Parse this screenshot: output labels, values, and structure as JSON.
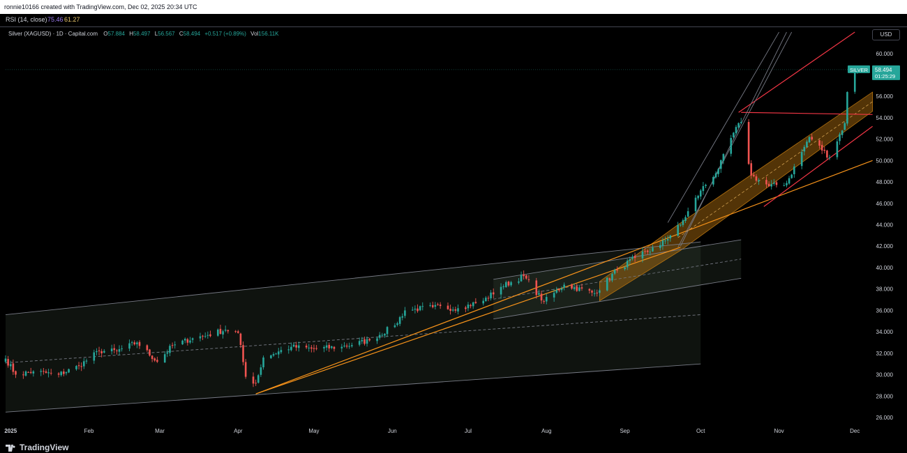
{
  "header": {
    "credit": "ronnie10166 created with TradingView.com, Dec 02, 2025 20:34 UTC"
  },
  "indicator": {
    "name": "RSI (14, close)",
    "value1": "75.46",
    "value2": "61.27"
  },
  "legend": {
    "title": "Silver (XAGUSD) · 1D · Capital.com",
    "o_key": "O",
    "o_val": "57.884",
    "h_key": "H",
    "h_val": "58.497",
    "l_key": "L",
    "l_val": "56.567",
    "c_key": "C",
    "c_val": "58.494",
    "change": "+0.517 (+0.89%)",
    "vol_key": "Vol",
    "vol_val": "156.11K"
  },
  "currency_button": "USD",
  "price_tag": {
    "symbol": "SILVER",
    "price": "58.494",
    "countdown": "01:25:29"
  },
  "footer": {
    "brand": "TradingView"
  },
  "colors": {
    "up": "#26a69a",
    "down": "#ef5350",
    "channel_fill": "#b8740f",
    "trendline": "#f7931a",
    "red_line": "#f23645",
    "grid_line": "#787b86"
  },
  "chart_data": {
    "type": "candlestick",
    "title": "Silver (XAGUSD) · 1D · Capital.com",
    "y_axis": {
      "ticks": [
        26,
        28,
        30,
        32,
        34,
        36,
        38,
        40,
        42,
        44,
        46,
        48,
        50,
        52,
        54,
        56,
        58,
        60
      ],
      "tick_labels": [
        "26.000",
        "28.000",
        "30.000",
        "32.000",
        "34.000",
        "36.000",
        "38.000",
        "40.000",
        "42.000",
        "44.000",
        "46.000",
        "48.000",
        "50.000",
        "52.000",
        "54.000",
        "56.000",
        "58.000",
        "60.000"
      ],
      "ylim": [
        25.2,
        61.5
      ]
    },
    "x_axis": {
      "range": [
        "2024-12-30",
        "2025-12-07"
      ],
      "ticks": [
        {
          "date": "2025-01-01",
          "label": "2025"
        },
        {
          "date": "2025-02-01",
          "label": "Feb"
        },
        {
          "date": "2025-03-01",
          "label": "Mar"
        },
        {
          "date": "2025-04-01",
          "label": "Apr"
        },
        {
          "date": "2025-05-01",
          "label": "May"
        },
        {
          "date": "2025-06-01",
          "label": "Jun"
        },
        {
          "date": "2025-07-01",
          "label": "Jul"
        },
        {
          "date": "2025-08-01",
          "label": "Aug"
        },
        {
          "date": "2025-09-01",
          "label": "Sep"
        },
        {
          "date": "2025-10-01",
          "label": "Oct"
        },
        {
          "date": "2025-11-01",
          "label": "Nov"
        },
        {
          "date": "2025-12-01",
          "label": "Dec"
        }
      ]
    },
    "anchor_path": [
      [
        "2024-12-30",
        31.5
      ],
      [
        "2025-01-03",
        30.0
      ],
      [
        "2025-01-10",
        30.3
      ],
      [
        "2025-01-20",
        30.0
      ],
      [
        "2025-01-28",
        30.8
      ],
      [
        "2025-02-05",
        32.2
      ],
      [
        "2025-02-12",
        32.2
      ],
      [
        "2025-02-20",
        33.0
      ],
      [
        "2025-02-28",
        31.2
      ],
      [
        "2025-03-06",
        32.7
      ],
      [
        "2025-03-14",
        33.4
      ],
      [
        "2025-03-20",
        33.7
      ],
      [
        "2025-03-27",
        34.2
      ],
      [
        "2025-04-01",
        33.9
      ],
      [
        "2025-04-04",
        29.8
      ],
      [
        "2025-04-08",
        29.2
      ],
      [
        "2025-04-11",
        31.6
      ],
      [
        "2025-04-22",
        32.6
      ],
      [
        "2025-05-01",
        32.4
      ],
      [
        "2025-05-12",
        32.6
      ],
      [
        "2025-05-23",
        33.2
      ],
      [
        "2025-06-02",
        34.6
      ],
      [
        "2025-06-06",
        36.0
      ],
      [
        "2025-06-17",
        36.3
      ],
      [
        "2025-06-27",
        36.2
      ],
      [
        "2025-07-07",
        36.9
      ],
      [
        "2025-07-14",
        38.2
      ],
      [
        "2025-07-23",
        39.2
      ],
      [
        "2025-07-31",
        36.8
      ],
      [
        "2025-08-08",
        38.4
      ],
      [
        "2025-08-20",
        37.6
      ],
      [
        "2025-08-29",
        39.8
      ],
      [
        "2025-09-05",
        40.9
      ],
      [
        "2025-09-15",
        42.1
      ],
      [
        "2025-09-23",
        44.0
      ],
      [
        "2025-10-01",
        47.2
      ],
      [
        "2025-10-08",
        49.2
      ],
      [
        "2025-10-14",
        52.6
      ],
      [
        "2025-10-17",
        53.6
      ],
      [
        "2025-10-21",
        48.6
      ],
      [
        "2025-10-28",
        47.6
      ],
      [
        "2025-11-04",
        47.9
      ],
      [
        "2025-11-10",
        50.8
      ],
      [
        "2025-11-13",
        52.2
      ],
      [
        "2025-11-21",
        50.3
      ],
      [
        "2025-11-27",
        53.5
      ],
      [
        "2025-11-28",
        56.4
      ],
      [
        "2025-12-01",
        58.4
      ],
      [
        "2025-12-02",
        58.494
      ]
    ],
    "drawings": {
      "channels": [
        {
          "name": "big-gray-channel",
          "lines": [
            [
              [
                "2024-12-30",
                35.6
              ],
              [
                "2025-10-01",
                42.4
              ]
            ],
            [
              [
                "2024-12-30",
                31.1
              ],
              [
                "2025-10-01",
                35.6
              ]
            ],
            [
              [
                "2024-12-30",
                26.5
              ],
              [
                "2025-10-01",
                31.0
              ]
            ]
          ],
          "fill": [
            [
              "2024-12-30",
              35.6
            ],
            [
              "2025-10-01",
              42.4
            ],
            [
              "2025-10-01",
              31.0
            ],
            [
              "2024-12-30",
              26.5
            ]
          ]
        },
        {
          "name": "summer-channel",
          "lines": [
            [
              [
                "2025-07-11",
                38.9
              ],
              [
                "2025-10-17",
                42.6
              ]
            ],
            [
              [
                "2025-07-11",
                35.2
              ],
              [
                "2025-10-17",
                39.0
              ]
            ]
          ],
          "fill": [
            [
              "2025-07-11",
              38.9
            ],
            [
              "2025-10-17",
              42.6
            ],
            [
              "2025-10-17",
              39.0
            ],
            [
              "2025-07-11",
              35.2
            ]
          ]
        },
        {
          "name": "orange-channel",
          "fill": [
            [
              "2025-08-22",
              38.7
            ],
            [
              "2025-09-22",
              44.0
            ],
            [
              "2025-12-08",
              56.4
            ],
            [
              "2025-12-08",
              54.6
            ],
            [
              "2025-09-23",
              41.6
            ],
            [
              "2025-08-22",
              36.9
            ]
          ]
        }
      ],
      "lines": [
        {
          "color": "trendline",
          "points": [
            [
              "2025-04-08",
              28.2
            ],
            [
              "2025-12-08",
              50.0
            ]
          ]
        },
        {
          "color": "trendline",
          "points": [
            [
              "2025-04-08",
              28.2
            ],
            [
              "2025-09-23",
              41.9
            ]
          ]
        },
        {
          "color": "red_line",
          "points": [
            [
              "2025-10-17",
              54.5
            ],
            [
              "2025-12-08",
              54.3
            ]
          ]
        },
        {
          "color": "red_line",
          "points": [
            [
              "2025-10-16",
              54.5
            ],
            [
              "2025-12-01",
              62.0
            ]
          ]
        },
        {
          "color": "red_line",
          "points": [
            [
              "2025-10-26",
              45.7
            ],
            [
              "2025-12-08",
              53.2
            ]
          ]
        },
        {
          "color": "grid_line",
          "points": [
            [
              "2025-09-23",
              42.0
            ],
            [
              "2025-11-04",
              62.0
            ]
          ]
        },
        {
          "color": "grid_line",
          "points": [
            [
              "2025-09-18",
              44.2
            ],
            [
              "2025-11-01",
              62.0
            ]
          ]
        },
        {
          "color": "grid_line",
          "points": [
            [
              "2025-09-22",
              41.9
            ],
            [
              "2025-11-06",
              62.0
            ]
          ]
        }
      ]
    }
  }
}
